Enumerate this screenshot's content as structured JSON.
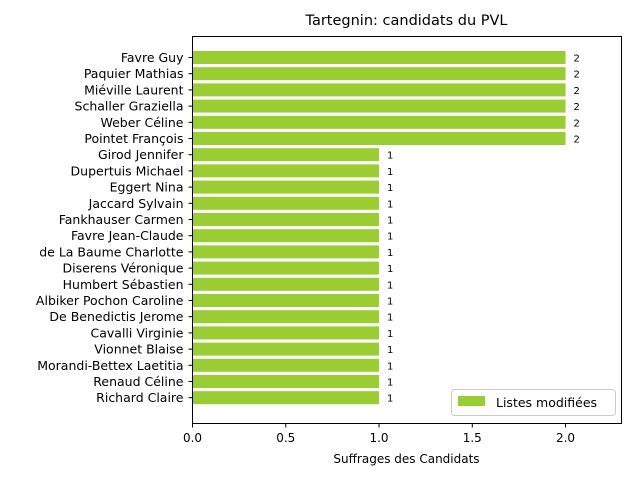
{
  "chart_data": {
    "type": "bar",
    "orientation": "horizontal",
    "title": "Tartegnin: candidats du PVL",
    "xlabel": "Suffrages des Candidats",
    "ylabel": "",
    "xlim": [
      0,
      2.3
    ],
    "xticks": [
      0,
      0.5,
      1,
      1.5,
      2
    ],
    "xtick_labels": [
      "0.0",
      "0.5",
      "1.0",
      "1.5",
      "2.0"
    ],
    "grid": false,
    "legend_position": "lower-right",
    "series": [
      {
        "name": "Listes modifiées",
        "color": "#9acd32",
        "categories": [
          "Favre Guy",
          "Paquier Mathias",
          "Miéville Laurent",
          "Schaller Graziella",
          "Weber Céline",
          "Pointet François",
          "Girod Jennifer",
          "Dupertuis Michael",
          "Eggert Nina",
          "Jaccard Sylvain",
          "Fankhauser Carmen",
          "Favre Jean-Claude",
          "de La Baume Charlotte",
          "Diserens Véronique",
          "Humbert Sébastien",
          "Albiker Pochon Caroline",
          "De Benedictis Jerome",
          "Cavalli Virginie",
          "Vionnet Blaise",
          "Morandi-Bettex Laetitia",
          "Renaud Céline",
          "Richard Claire"
        ],
        "values": [
          2,
          2,
          2,
          2,
          2,
          2,
          1,
          1,
          1,
          1,
          1,
          1,
          1,
          1,
          1,
          1,
          1,
          1,
          1,
          1,
          1,
          1
        ],
        "data_labels": [
          "2",
          "2",
          "2",
          "2",
          "2",
          "2",
          "1",
          "1",
          "1",
          "1",
          "1",
          "1",
          "1",
          "1",
          "1",
          "1",
          "1",
          "1",
          "1",
          "1",
          "1",
          "1"
        ]
      }
    ]
  }
}
